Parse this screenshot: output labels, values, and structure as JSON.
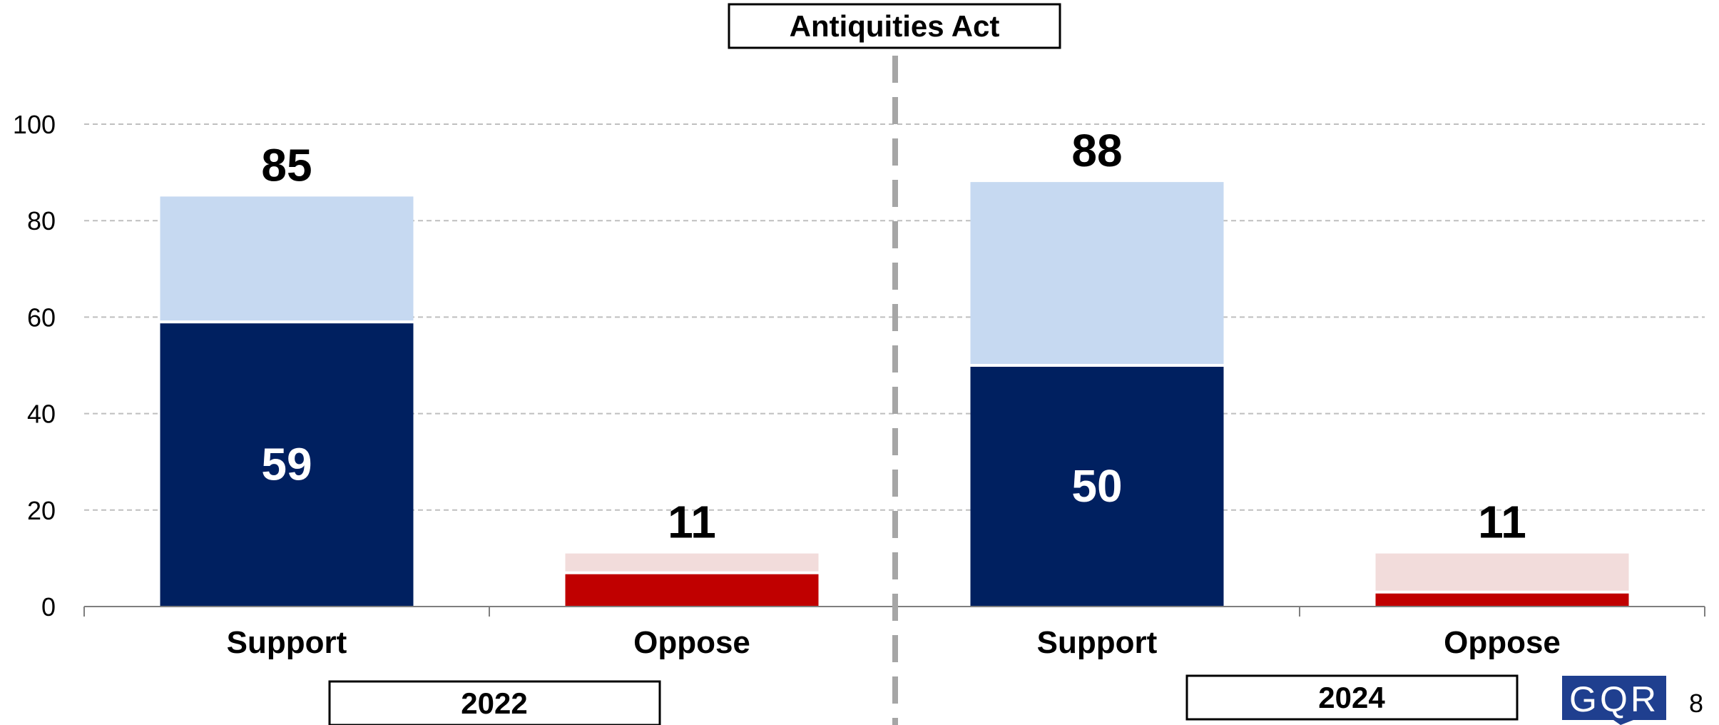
{
  "chart_data": {
    "type": "bar",
    "title": "Antiquities Act",
    "groups": [
      "2022",
      "2024"
    ],
    "categories": [
      "Support",
      "Oppose"
    ],
    "ylim": [
      0,
      100
    ],
    "yticks": [
      0,
      20,
      40,
      60,
      80,
      100
    ],
    "grid": true,
    "bars": [
      {
        "group": "2022",
        "category": "Support",
        "total": 85,
        "strong": 59,
        "total_label": "85",
        "strong_label": "59"
      },
      {
        "group": "2022",
        "category": "Oppose",
        "total": 11,
        "strong": 7,
        "total_label": "11",
        "strong_label": ""
      },
      {
        "group": "2024",
        "category": "Support",
        "total": 88,
        "strong": 50,
        "total_label": "88",
        "strong_label": "50"
      },
      {
        "group": "2024",
        "category": "Oppose",
        "total": 11,
        "strong": 3,
        "total_label": "11",
        "strong_label": ""
      }
    ],
    "colors": {
      "support_strong": "#002060",
      "support_total": "#C6D9F1",
      "oppose_strong": "#C00000",
      "oppose_total": "#F2DCDB"
    }
  },
  "logo": "GQR",
  "page_number": "8"
}
